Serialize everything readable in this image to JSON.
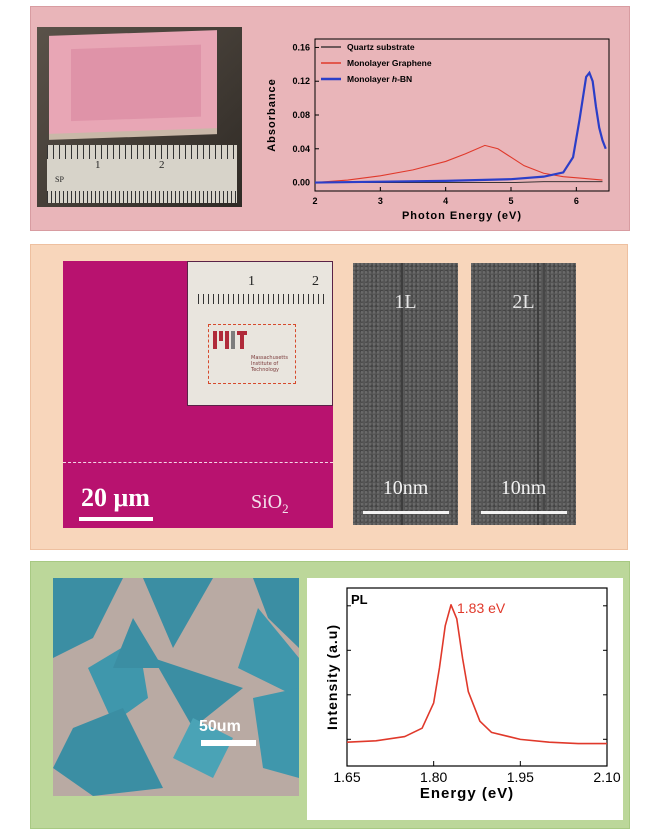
{
  "panel_a": {
    "photo_ruler_labels": [
      "1",
      "2"
    ],
    "photo_ruler_label_small": "SP"
  },
  "panel_b": {
    "scalebar_label": "20 μm",
    "substrate_label": "SiO",
    "substrate_sub": "2",
    "inset_ruler_labels": [
      "1",
      "2"
    ],
    "inset_text": "Massachusetts Institute of Technology",
    "tem_panels": [
      {
        "label": "1L",
        "scalebar": "10nm"
      },
      {
        "label": "2L",
        "scalebar": "10nm"
      }
    ]
  },
  "panel_c": {
    "scalebar_label": "50um"
  },
  "colors": {
    "panel_a_bg": "#e9b5b9",
    "panel_b_bg": "#f8d6bb",
    "panel_c_bg": "#bcd79a",
    "quartz": "#222222",
    "graphene": "#e0392b",
    "hbn": "#2b3ec8",
    "pl": "#e0392b"
  },
  "chart_data": [
    {
      "type": "line",
      "title": "",
      "xlabel": "Photon Energy (eV)",
      "ylabel": "Absorbance",
      "xlim": [
        2,
        6.5
      ],
      "ylim": [
        -0.01,
        0.17
      ],
      "xticks": [
        "2",
        "3",
        "4",
        "5",
        "6"
      ],
      "yticks": [
        "0.00",
        "0.04",
        "0.08",
        "0.12",
        "0.16"
      ],
      "legend_position": "top-left",
      "series": [
        {
          "name": "Quartz substrate",
          "color": "#222222",
          "x": [
            2.0,
            2.5,
            3.0,
            3.5,
            4.0,
            4.5,
            5.0,
            5.5,
            6.0,
            6.2,
            6.4
          ],
          "y": [
            0.0,
            0.0,
            0.0,
            0.0,
            0.0,
            0.0,
            0.0,
            0.001,
            0.001,
            0.001,
            0.001
          ]
        },
        {
          "name": "Monolayer Graphene",
          "color": "#e0392b",
          "x": [
            2.0,
            2.5,
            3.0,
            3.5,
            4.0,
            4.3,
            4.6,
            4.8,
            5.0,
            5.2,
            5.5,
            5.8,
            6.1,
            6.4
          ],
          "y": [
            0.0,
            0.003,
            0.008,
            0.015,
            0.025,
            0.034,
            0.044,
            0.04,
            0.03,
            0.02,
            0.011,
            0.007,
            0.005,
            0.003
          ]
        },
        {
          "name": "Monolayer h-BN",
          "name_parts": [
            "Monolayer ",
            "h",
            "-BN"
          ],
          "color": "#2b3ec8",
          "x": [
            2.0,
            3.0,
            4.0,
            5.0,
            5.5,
            5.8,
            5.95,
            6.05,
            6.15,
            6.2,
            6.25,
            6.3,
            6.35,
            6.4,
            6.45
          ],
          "y": [
            0.0,
            0.001,
            0.002,
            0.004,
            0.007,
            0.012,
            0.03,
            0.075,
            0.125,
            0.13,
            0.12,
            0.09,
            0.065,
            0.05,
            0.04
          ]
        }
      ]
    },
    {
      "type": "line",
      "title": "",
      "xlabel": "Energy (eV)",
      "ylabel": "Intensity (a.u)",
      "xlim": [
        1.65,
        2.1
      ],
      "xticks": [
        "1.65",
        "1.80",
        "1.95",
        "2.10"
      ],
      "legend_label": "PL",
      "annotation": "1.83 eV",
      "series": [
        {
          "name": "PL",
          "color": "#e0392b",
          "x": [
            1.65,
            1.7,
            1.75,
            1.78,
            1.8,
            1.81,
            1.82,
            1.83,
            1.84,
            1.85,
            1.86,
            1.88,
            1.9,
            1.95,
            2.0,
            2.05,
            2.1
          ],
          "y": [
            0.02,
            0.03,
            0.06,
            0.12,
            0.3,
            0.55,
            0.85,
            1.0,
            0.9,
            0.62,
            0.38,
            0.17,
            0.09,
            0.04,
            0.02,
            0.01,
            0.01
          ]
        }
      ]
    }
  ]
}
